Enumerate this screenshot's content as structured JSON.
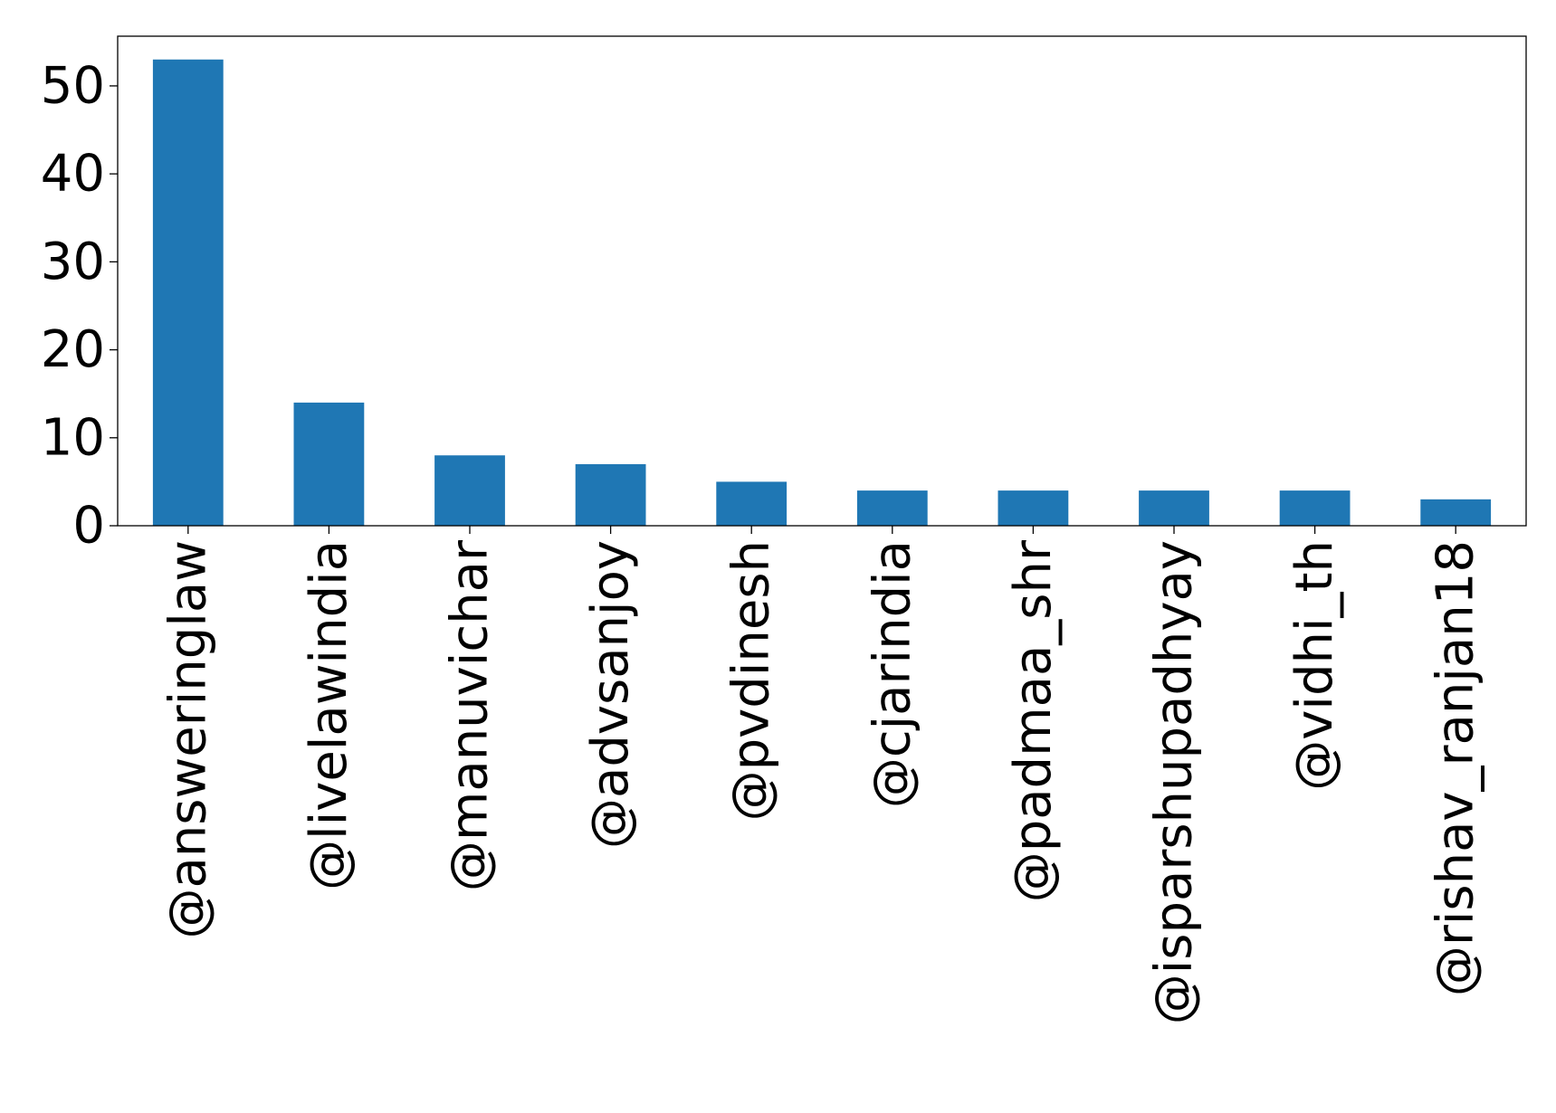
{
  "chart_data": {
    "type": "bar",
    "title": "",
    "xlabel": "",
    "ylabel": "",
    "categories": [
      "@answeringlaw",
      "@livelawindia",
      "@manuvichar",
      "@advsanjoy",
      "@pvdinesh",
      "@cjarindia",
      "@padmaa_shr",
      "@isparshupadhyay",
      "@vidhi_th",
      "@rishav_ranjan18"
    ],
    "series": [
      {
        "values": [
          53,
          14,
          8,
          7,
          5,
          4,
          4,
          4,
          4,
          3
        ]
      }
    ],
    "yticks": [
      0,
      10,
      20,
      30,
      40,
      50
    ],
    "ylim": [
      0,
      55.65
    ],
    "grid": false,
    "legend": "none",
    "colors": {
      "bar": "#1f77b4",
      "axis": "#000000",
      "background": "#ffffff"
    }
  }
}
